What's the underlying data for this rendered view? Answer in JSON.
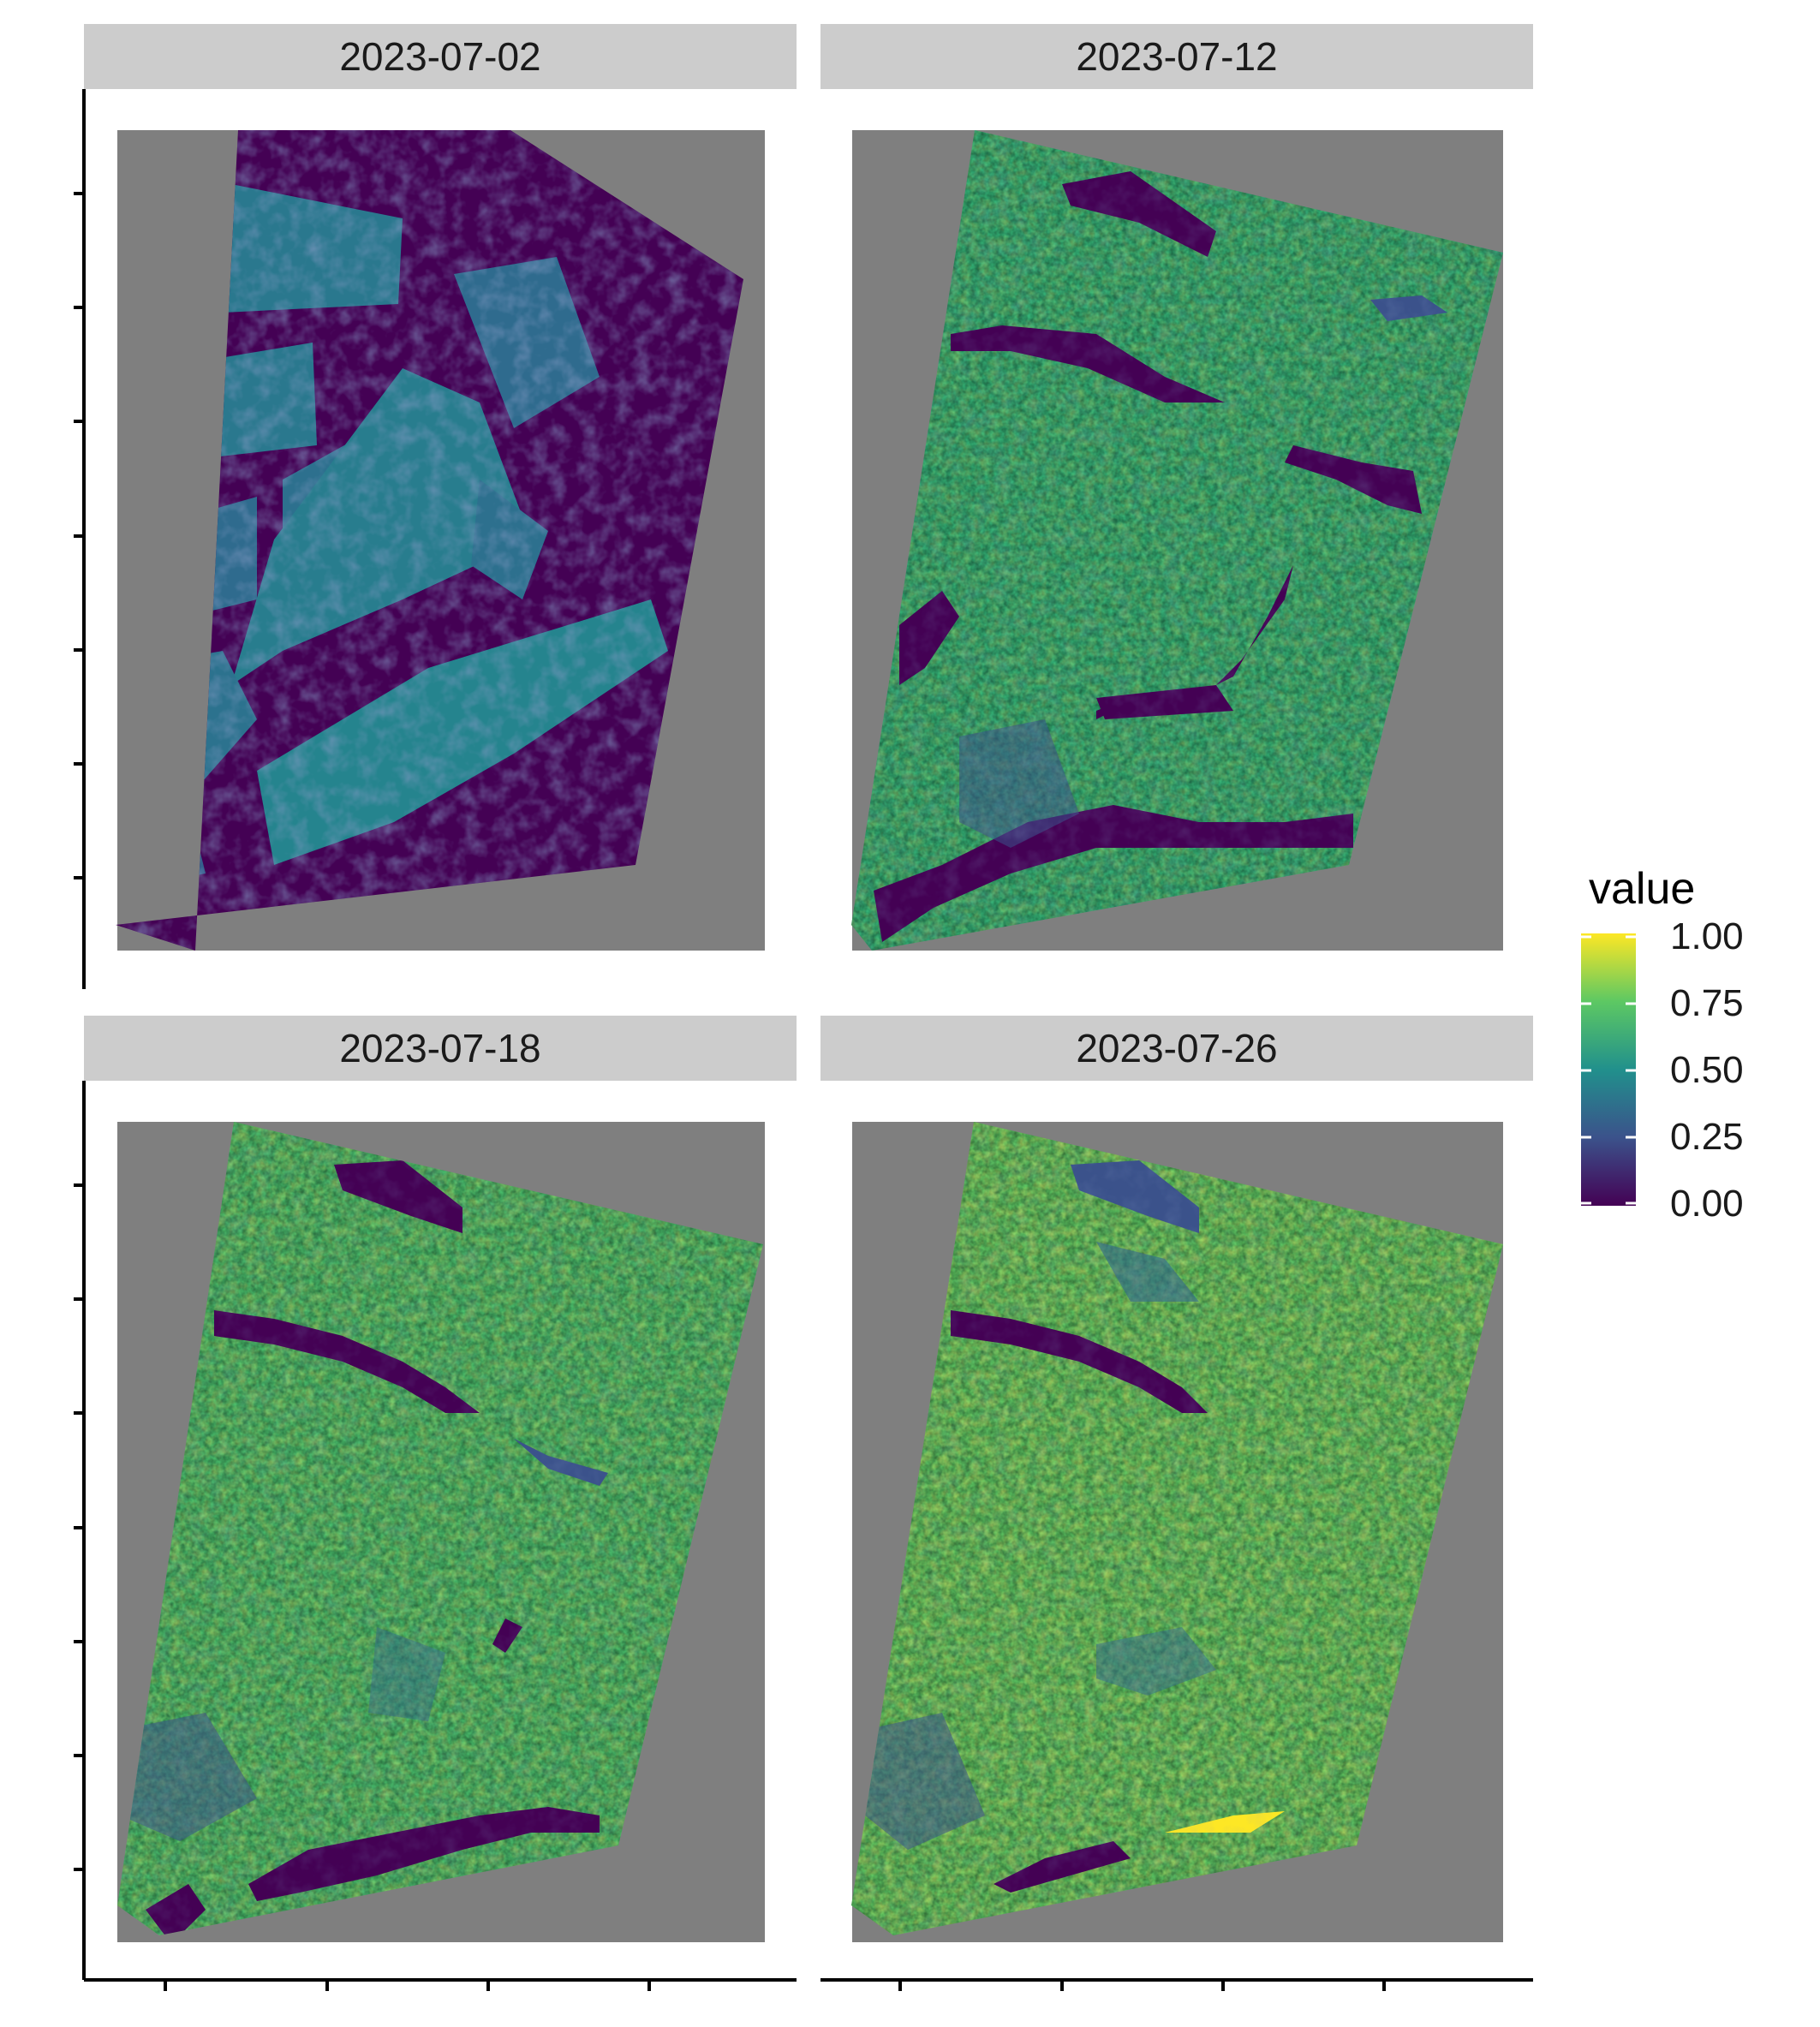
{
  "chart_data": {
    "type": "heatmap",
    "colormap": "viridis",
    "colors": {
      "panel_background": "#7f7f7f",
      "strip_background": "#cccccc",
      "scale": [
        "#440154",
        "#3b528b",
        "#21908c",
        "#5dc863",
        "#fde725"
      ]
    },
    "panels": [
      {
        "title": "2023-07-02",
        "mean_value": 0.22,
        "coverage": "partial"
      },
      {
        "title": "2023-07-12",
        "mean_value": 0.58,
        "coverage": "full"
      },
      {
        "title": "2023-07-18",
        "mean_value": 0.62,
        "coverage": "full"
      },
      {
        "title": "2023-07-26",
        "mean_value": 0.66,
        "coverage": "full"
      }
    ],
    "legend": {
      "title": "value",
      "placement": "right",
      "breaks": [
        "1.00",
        "0.75",
        "0.50",
        "0.25",
        "0.00"
      ],
      "range": [
        0,
        1
      ]
    },
    "axes": {
      "x_tick_labels": [],
      "y_tick_labels": [],
      "grid": false
    }
  }
}
